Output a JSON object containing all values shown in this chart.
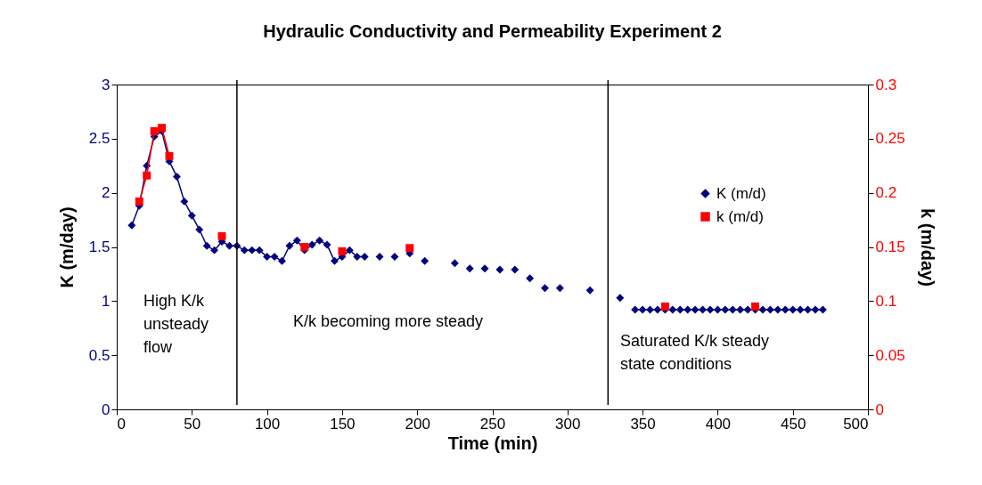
{
  "chart_data": {
    "type": "line",
    "title": "Hydraulic Conductivity and Permeability Experiment 2",
    "xlabel": "Time (min)",
    "ylabel": "K (m/day)",
    "y2label": "k (m/day)",
    "xlim": [
      0,
      500
    ],
    "xticks": [
      0,
      50,
      100,
      150,
      200,
      250,
      300,
      350,
      400,
      450,
      500
    ],
    "ylim": [
      0,
      3
    ],
    "yticks": [
      0,
      0.5,
      1,
      1.5,
      2,
      2.5,
      3
    ],
    "y2lim": [
      0,
      0.3
    ],
    "y2ticks": [
      0,
      0.05,
      0.1,
      0.15,
      0.2,
      0.25,
      0.3
    ],
    "grid": false,
    "legend": "top right",
    "series": [
      {
        "name": "K (m/d)",
        "color": "#000080",
        "marker": "diamond",
        "axis": "y",
        "x": [
          10,
          15,
          20,
          25,
          30,
          35,
          40,
          45,
          50,
          55,
          60,
          65,
          70,
          75,
          80,
          85,
          90,
          95,
          100,
          105,
          110,
          115,
          120,
          125,
          130,
          135,
          140,
          145,
          150,
          155,
          160,
          165,
          170,
          175,
          180,
          185,
          190,
          195,
          200,
          205,
          215,
          225,
          230,
          235,
          240,
          245,
          250,
          255,
          260,
          265,
          270,
          275,
          280,
          285,
          290,
          295,
          305,
          315,
          325,
          335,
          340,
          345,
          350,
          355,
          360,
          365,
          370,
          375,
          380,
          385,
          390,
          395,
          400,
          405,
          410,
          415,
          420,
          425,
          430,
          435,
          440,
          445,
          450,
          455,
          460,
          465,
          470
        ],
        "values": [
          1.7,
          1.88,
          2.25,
          2.52,
          2.57,
          2.29,
          2.15,
          1.92,
          1.79,
          1.66,
          1.51,
          1.47,
          1.55,
          1.51,
          1.51,
          1.47,
          1.47,
          1.47,
          1.41,
          1.41,
          1.37,
          1.51,
          1.56,
          1.47,
          1.52,
          1.56,
          1.52,
          1.37,
          1.41,
          1.47,
          1.41,
          1.41,
          null,
          1.41,
          null,
          1.41,
          null,
          1.44,
          null,
          1.37,
          null,
          1.35,
          null,
          1.3,
          null,
          1.3,
          null,
          1.29,
          null,
          1.29,
          null,
          1.21,
          null,
          1.12,
          null,
          1.12,
          null,
          1.1,
          null,
          1.03,
          null,
          0.92,
          0.92,
          0.92,
          0.92,
          0.92,
          0.92,
          0.92,
          0.92,
          0.92,
          0.92,
          0.92,
          0.92,
          0.92,
          0.92,
          0.92,
          0.92,
          0.92,
          0.92,
          0.92,
          0.92,
          0.92,
          0.92,
          0.92,
          0.92,
          0.92,
          0.92
        ]
      },
      {
        "name": "k (m/d)",
        "color": "#ff0000",
        "marker": "square",
        "axis": "y2",
        "x": [
          15,
          20,
          25,
          30,
          35,
          50,
          70,
          100,
          125,
          140,
          150,
          170,
          195,
          300,
          365,
          400,
          425
        ],
        "values": [
          0.192,
          0.216,
          0.257,
          0.26,
          0.234,
          null,
          0.16,
          null,
          0.15,
          null,
          0.146,
          null,
          0.149,
          null,
          0.095,
          null,
          0.095
        ]
      }
    ],
    "ref_lines": [
      {
        "axis": "x",
        "value": 80,
        "color": "#000000",
        "line_style": "solid"
      },
      {
        "axis": "x",
        "value": 327,
        "color": "#000000",
        "line_style": "solid"
      }
    ],
    "annotations": [
      "High K/k\nunsteady\nflow",
      "K/k becoming more steady",
      "Saturated K/k steady\nstate conditions"
    ]
  }
}
